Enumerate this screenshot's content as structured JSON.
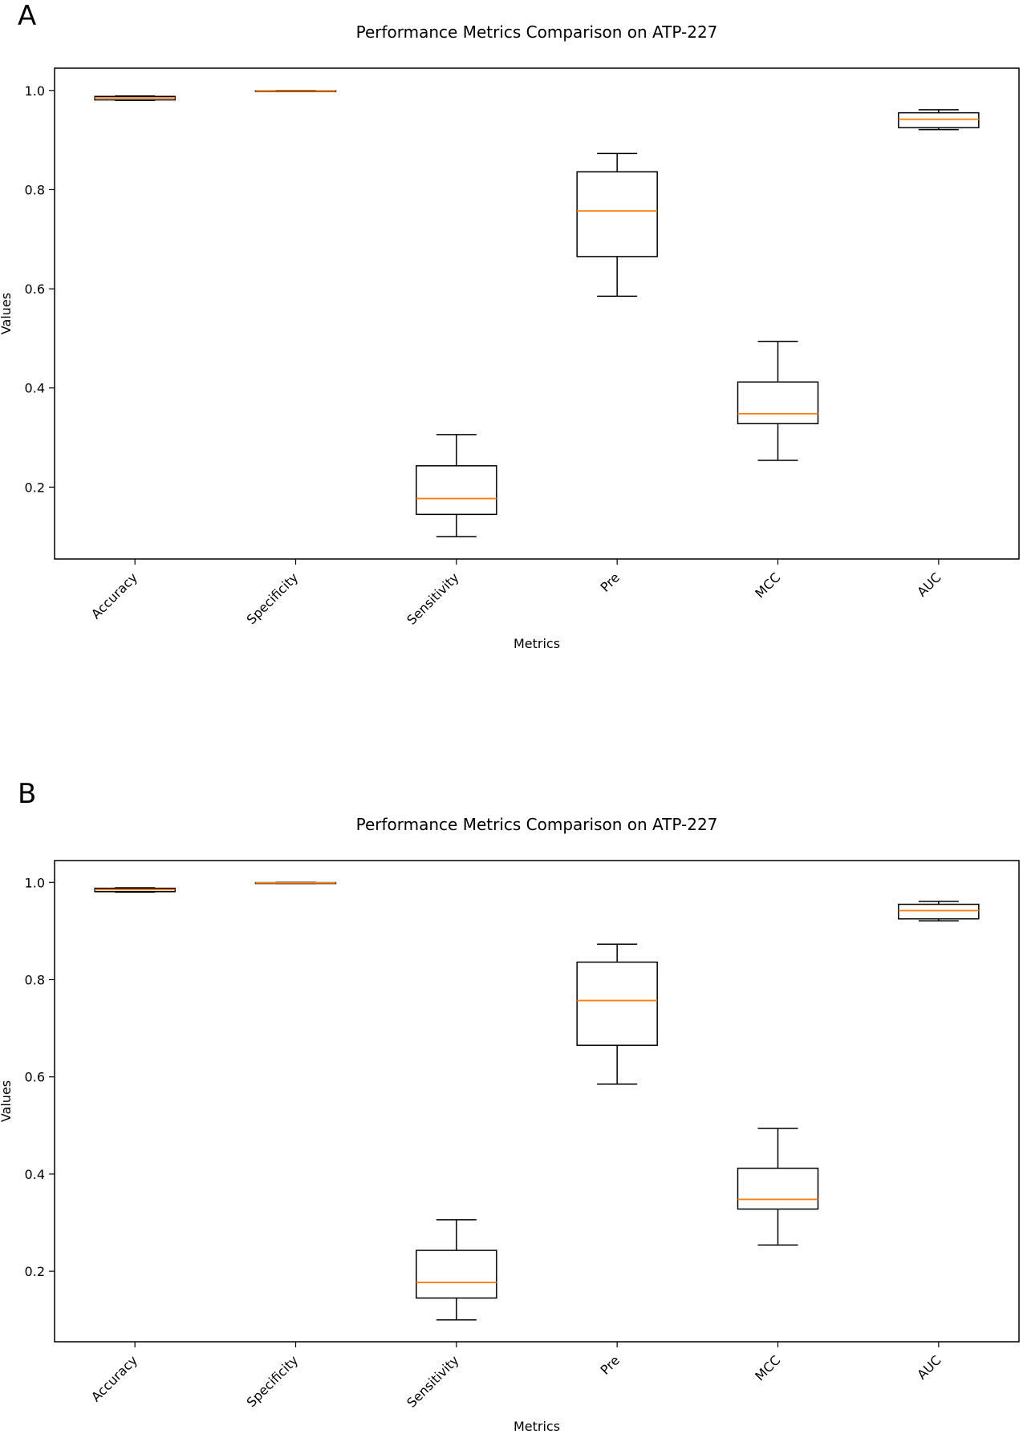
{
  "panels": [
    {
      "label": "A",
      "chart_data": {
        "type": "boxplot",
        "title": "Performance Metrics Comparison on ATP-227",
        "xlabel": "Metrics",
        "ylabel": "Values",
        "ylim": [
          0.055,
          1.045
        ],
        "yticks": [
          0.2,
          0.4,
          0.6,
          0.8,
          1.0
        ],
        "ytick_labels": [
          "0.2",
          "0.4",
          "0.6",
          "0.8",
          "1.0"
        ],
        "categories": [
          "Accuracy",
          "Specificity",
          "Sensitivity",
          "Pre",
          "MCC",
          "AUC"
        ],
        "boxes": [
          {
            "whislo": 0.98,
            "q1": 0.981,
            "med": 0.985,
            "q3": 0.988,
            "whishi": 0.989
          },
          {
            "whislo": 0.998,
            "q1": 0.9985,
            "med": 0.999,
            "q3": 0.9995,
            "whishi": 1.0
          },
          {
            "whislo": 0.1,
            "q1": 0.145,
            "med": 0.177,
            "q3": 0.243,
            "whishi": 0.306
          },
          {
            "whislo": 0.585,
            "q1": 0.665,
            "med": 0.757,
            "q3": 0.836,
            "whishi": 0.873
          },
          {
            "whislo": 0.254,
            "q1": 0.328,
            "med": 0.348,
            "q3": 0.412,
            "whishi": 0.494
          },
          {
            "whislo": 0.921,
            "q1": 0.925,
            "med": 0.942,
            "q3": 0.955,
            "whishi": 0.961
          }
        ],
        "colors": {
          "box": "#000000",
          "median": "#ff7f0e"
        }
      }
    },
    {
      "label": "B",
      "chart_data": {
        "type": "boxplot",
        "title": "Performance Metrics Comparison on ATP-227",
        "xlabel": "Metrics",
        "ylabel": "Values",
        "ylim": [
          0.055,
          1.045
        ],
        "yticks": [
          0.2,
          0.4,
          0.6,
          0.8,
          1.0
        ],
        "ytick_labels": [
          "0.2",
          "0.4",
          "0.6",
          "0.8",
          "1.0"
        ],
        "categories": [
          "Accuracy",
          "Specificity",
          "Sensitivity",
          "Pre",
          "MCC",
          "AUC"
        ],
        "boxes": [
          {
            "whislo": 0.98,
            "q1": 0.981,
            "med": 0.985,
            "q3": 0.988,
            "whishi": 0.989
          },
          {
            "whislo": 0.998,
            "q1": 0.9985,
            "med": 0.999,
            "q3": 0.9995,
            "whishi": 1.0
          },
          {
            "whislo": 0.1,
            "q1": 0.145,
            "med": 0.177,
            "q3": 0.243,
            "whishi": 0.306
          },
          {
            "whislo": 0.585,
            "q1": 0.665,
            "med": 0.757,
            "q3": 0.836,
            "whishi": 0.873
          },
          {
            "whislo": 0.254,
            "q1": 0.328,
            "med": 0.348,
            "q3": 0.412,
            "whishi": 0.494
          },
          {
            "whislo": 0.921,
            "q1": 0.925,
            "med": 0.942,
            "q3": 0.955,
            "whishi": 0.961
          }
        ],
        "colors": {
          "box": "#000000",
          "median": "#ff7f0e"
        }
      }
    }
  ]
}
